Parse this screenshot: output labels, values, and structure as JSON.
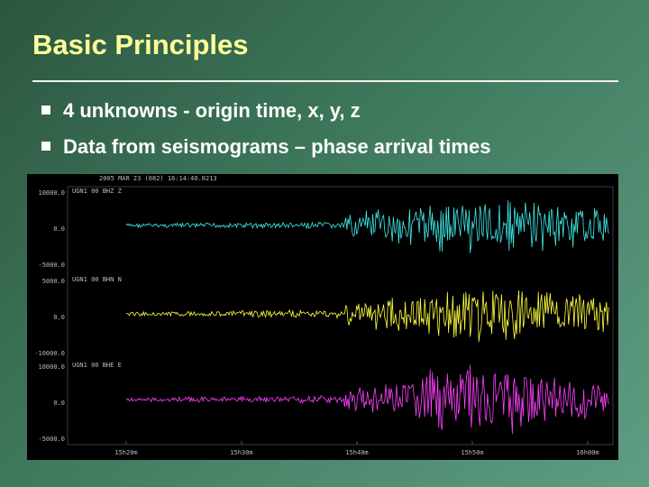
{
  "header": {
    "title": "Basic Principles"
  },
  "bullets": [
    "4 unknowns - origin time, x, y, z",
    "Data from seismograms – phase arrival times"
  ],
  "seismogram": {
    "header": "2005 MAR 23 (082) 16:14:40.0213",
    "traces": [
      {
        "label": "UGN1 00 BHZ Z",
        "yticks": [
          "10000.0",
          "0.0",
          "-5000.0"
        ]
      },
      {
        "label": "UGN1 00 BHN N",
        "yticks": [
          "5000.0",
          "0.0",
          "-10000.0"
        ]
      },
      {
        "label": "UGN1 00 BHE E",
        "yticks": [
          "10000.0",
          "0.0",
          "-5000.0"
        ]
      }
    ],
    "time_ticks": [
      "15h20m",
      "15h30m",
      "15h40m",
      "15h50m",
      "16h00m"
    ]
  }
}
